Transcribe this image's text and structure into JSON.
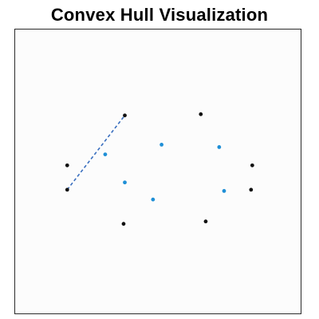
{
  "app": {
    "title": "Convex Hull Visualization"
  },
  "colors": {
    "hull_point": "#111111",
    "interior_point": "#1f8fd6",
    "hull_edge": "#3a6fbf",
    "frame": "#2b2b2b",
    "canvas_background": "#fcfcfc"
  },
  "chart_data": {
    "type": "scatter",
    "title": "Convex Hull Visualization",
    "xlabel": "",
    "ylabel": "",
    "grid": false,
    "legend": "none",
    "series": [
      {
        "role": "hull-points",
        "points": [
          {
            "x": -4.9,
            "y": 0.5
          },
          {
            "x": -4.9,
            "y": -1.5
          },
          {
            "x": -0.2,
            "y": 4.6
          },
          {
            "x": 6.0,
            "y": 4.7
          },
          {
            "x": 10.2,
            "y": 0.5
          },
          {
            "x": 10.1,
            "y": -1.5
          },
          {
            "x": 6.4,
            "y": -4.1
          },
          {
            "x": -0.3,
            "y": -4.3
          }
        ]
      },
      {
        "role": "interior-points",
        "points": [
          {
            "x": -1.8,
            "y": 1.4
          },
          {
            "x": 2.8,
            "y": 2.2
          },
          {
            "x": 7.5,
            "y": 2.0
          },
          {
            "x": -0.2,
            "y": -0.9
          },
          {
            "x": 2.1,
            "y": -2.3
          },
          {
            "x": 7.9,
            "y": -1.6
          }
        ]
      }
    ],
    "edges": [
      {
        "from": {
          "x": -4.9,
          "y": -1.5
        },
        "to": {
          "x": -0.2,
          "y": 4.6
        },
        "style": "dashed"
      }
    ]
  }
}
